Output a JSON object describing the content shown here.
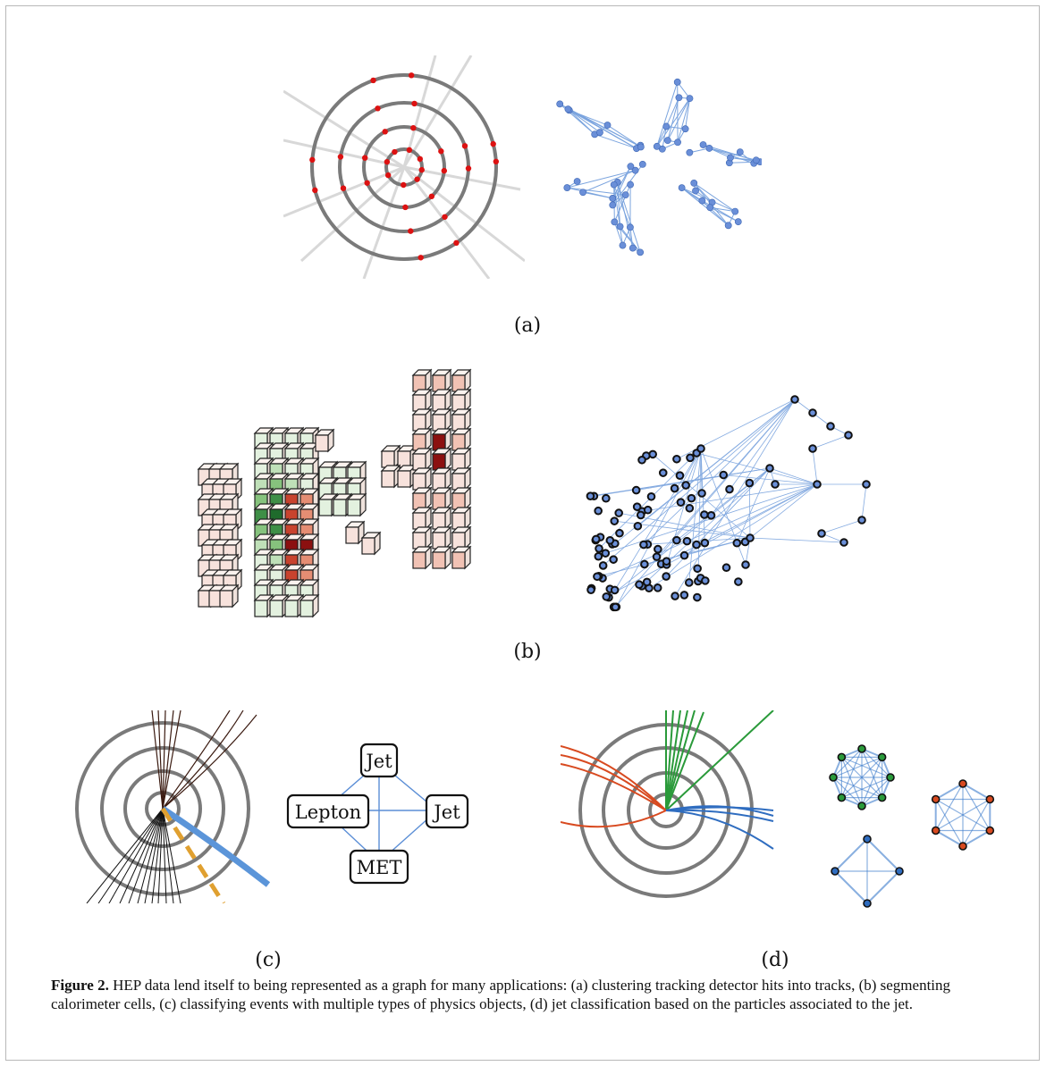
{
  "figure": {
    "label": "Figure 2.",
    "caption": "HEP data lend itself to being represented as a graph for many applications: (a) clustering tracking detector hits into tracks, (b) segmenting calorimeter cells, (c) classifying events with multiple types of physics objects, (d) jet classification based on the particles associated to the jet."
  },
  "panels": {
    "a": {
      "label": "(a)"
    },
    "b": {
      "label": "(b)"
    },
    "c": {
      "label": "(c)",
      "nodes": [
        "Jet",
        "Lepton",
        "Jet",
        "MET"
      ]
    },
    "d": {
      "label": "(d)"
    }
  },
  "colors": {
    "ring": "#7a7a7a",
    "hit": "#dd1111",
    "graph_node": "#6a8fd8",
    "graph_edge": "#5b8ed6",
    "cal_green": "#1f6b2c",
    "cal_red": "#8b1010",
    "lepton_track": "#5b95d9",
    "met": "#e0a030",
    "jet_green": "#2a9a3a",
    "jet_red": "#d84a20",
    "jet_blue": "#2f6dc0"
  }
}
